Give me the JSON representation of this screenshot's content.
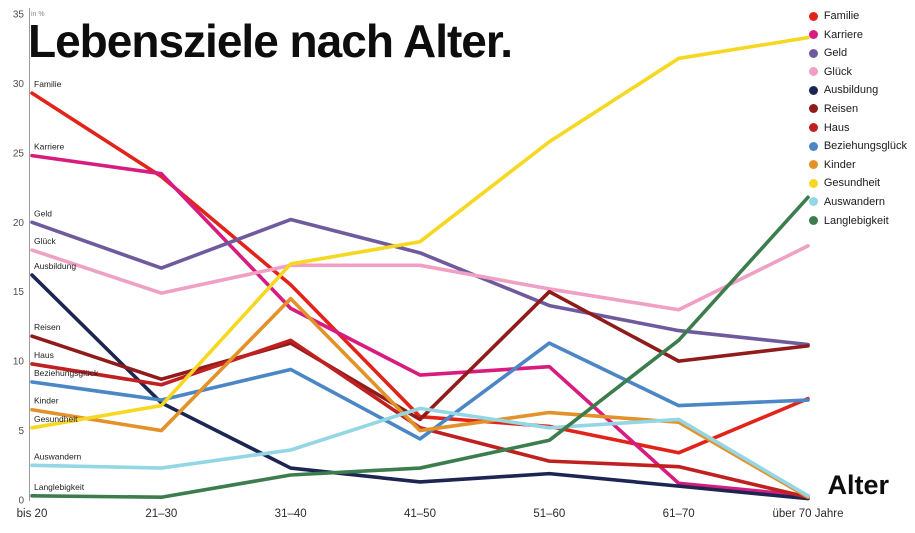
{
  "title": "Lebensziele nach Alter.",
  "y_axis": {
    "unit_label": "in %",
    "ticks": [
      35,
      30,
      25,
      20,
      15,
      10,
      5,
      0
    ]
  },
  "x_axis": {
    "label": "Alter",
    "categories": [
      "bis 20",
      "21–30",
      "31–40",
      "41–50",
      "51–60",
      "61–70",
      "über 70 Jahre"
    ]
  },
  "chart_data": {
    "type": "line",
    "title": "Lebensziele nach Alter.",
    "xlabel": "Alter",
    "ylabel": "in %",
    "ylim": [
      0,
      35
    ],
    "grid": false,
    "legend_position": "top-right",
    "categories": [
      "bis 20",
      "21–30",
      "31–40",
      "41–50",
      "51–60",
      "61–70",
      "über 70 Jahre"
    ],
    "series": [
      {
        "name": "Familie",
        "color": "#e2231a",
        "values": [
          29.3,
          23.3,
          15.5,
          6.0,
          5.3,
          3.4,
          7.3
        ]
      },
      {
        "name": "Karriere",
        "color": "#d81b7f",
        "values": [
          24.8,
          23.5,
          13.8,
          9.0,
          9.6,
          1.2,
          0.3
        ]
      },
      {
        "name": "Geld",
        "color": "#6f5a9e",
        "values": [
          20.0,
          16.7,
          20.2,
          17.8,
          14.0,
          12.2,
          11.2
        ]
      },
      {
        "name": "Glück",
        "color": "#efa0c4",
        "values": [
          18.0,
          14.9,
          16.9,
          16.9,
          15.2,
          13.7,
          18.3
        ]
      },
      {
        "name": "Ausbildung",
        "color": "#1d2553",
        "values": [
          16.2,
          7.0,
          2.3,
          1.3,
          1.9,
          1.0,
          0.1
        ]
      },
      {
        "name": "Reisen",
        "color": "#8f1b1b",
        "values": [
          11.8,
          8.7,
          11.3,
          5.8,
          15.0,
          10.0,
          11.1
        ]
      },
      {
        "name": "Haus",
        "color": "#bf2020",
        "values": [
          9.8,
          8.3,
          11.5,
          5.2,
          2.8,
          2.4,
          0.2
        ]
      },
      {
        "name": "Beziehungsglück",
        "color": "#4b86c5",
        "values": [
          8.5,
          7.2,
          9.4,
          4.4,
          11.3,
          6.8,
          7.2
        ]
      },
      {
        "name": "Kinder",
        "color": "#e39129",
        "values": [
          6.5,
          5.0,
          14.5,
          5.0,
          6.3,
          5.6,
          0.2
        ]
      },
      {
        "name": "Gesundheit",
        "color": "#f6d822",
        "values": [
          5.2,
          6.8,
          17.0,
          18.6,
          25.8,
          31.8,
          33.3
        ]
      },
      {
        "name": "Auswandern",
        "color": "#93d7e4",
        "values": [
          2.5,
          2.3,
          3.6,
          6.6,
          5.2,
          5.8,
          0.3
        ]
      },
      {
        "name": "Langlebigkeit",
        "color": "#3c7d4e",
        "values": [
          0.3,
          0.2,
          1.8,
          2.3,
          4.3,
          11.5,
          21.8
        ]
      }
    ]
  }
}
